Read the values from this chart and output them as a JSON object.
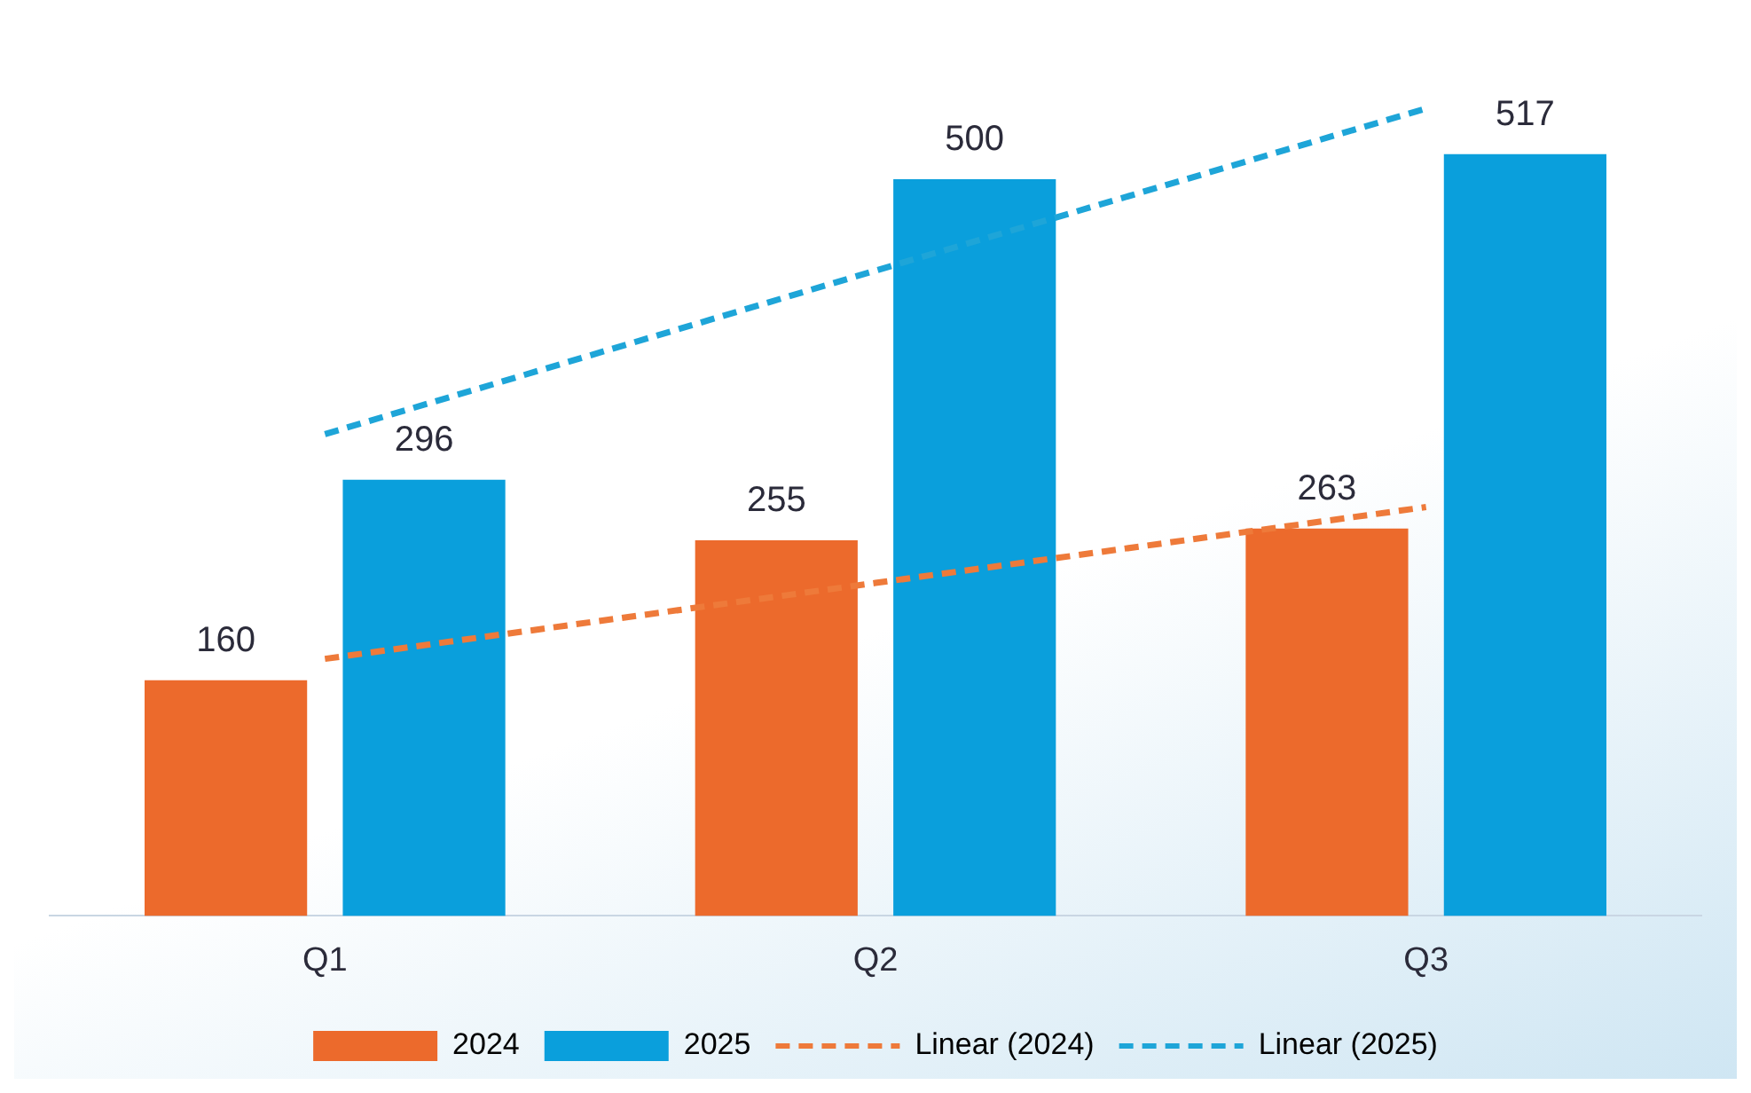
{
  "chart_data": {
    "type": "bar",
    "categories": [
      "Q1",
      "Q2",
      "Q3"
    ],
    "series": [
      {
        "name": "2024",
        "color": "#ec6a2c",
        "values": [
          160,
          255,
          263
        ],
        "value_labels": [
          "160",
          "255",
          "263"
        ]
      },
      {
        "name": "2025",
        "color": "#0a9fdc",
        "values": [
          296,
          500,
          517
        ],
        "value_labels": [
          "296",
          "500",
          "517"
        ]
      },
      {
        "name": "Linear (2024)",
        "type": "line",
        "color": "#ee7a3a",
        "values": [
          174.5,
          226,
          277.5
        ],
        "line_style": "dashed",
        "marker": "none"
      },
      {
        "name": "Linear (2025)",
        "type": "line",
        "color": "#1ea5d8",
        "values": [
          327,
          438,
          548
        ],
        "line_style": "dashed",
        "marker": "none"
      }
    ],
    "legend": "bottom",
    "tick_labels": "x"
  }
}
